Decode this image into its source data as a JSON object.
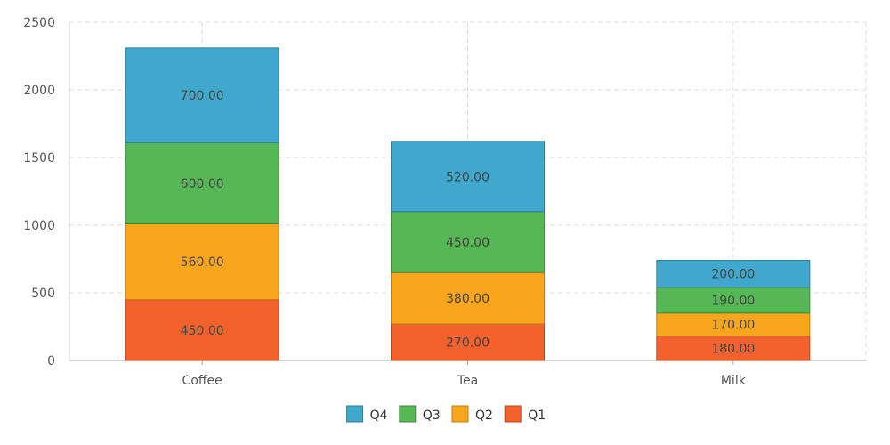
{
  "chart_data": {
    "type": "bar",
    "stacked": true,
    "categories": [
      "Coffee",
      "Tea",
      "Milk"
    ],
    "series": [
      {
        "name": "Q1",
        "values": [
          450,
          270,
          180
        ],
        "labels": [
          "450.00",
          "270.00",
          "180.00"
        ],
        "color": "#f3612d"
      },
      {
        "name": "Q2",
        "values": [
          560,
          380,
          170
        ],
        "labels": [
          "560.00",
          "380.00",
          "170.00"
        ],
        "color": "#faa61c"
      },
      {
        "name": "Q3",
        "values": [
          600,
          450,
          190
        ],
        "labels": [
          "600.00",
          "450.00",
          "190.00"
        ],
        "color": "#56b755"
      },
      {
        "name": "Q4",
        "values": [
          700,
          520,
          200
        ],
        "labels": [
          "700.00",
          "520.00",
          "200.00"
        ],
        "color": "#40a8cc"
      }
    ],
    "y_ticks": [
      "0",
      "500",
      "1000",
      "1500",
      "2000",
      "2500"
    ],
    "ylim": [
      0,
      2500
    ],
    "grid": true,
    "legend_position": "bottom",
    "legend_order": [
      "Q4",
      "Q3",
      "Q2",
      "Q1"
    ]
  }
}
